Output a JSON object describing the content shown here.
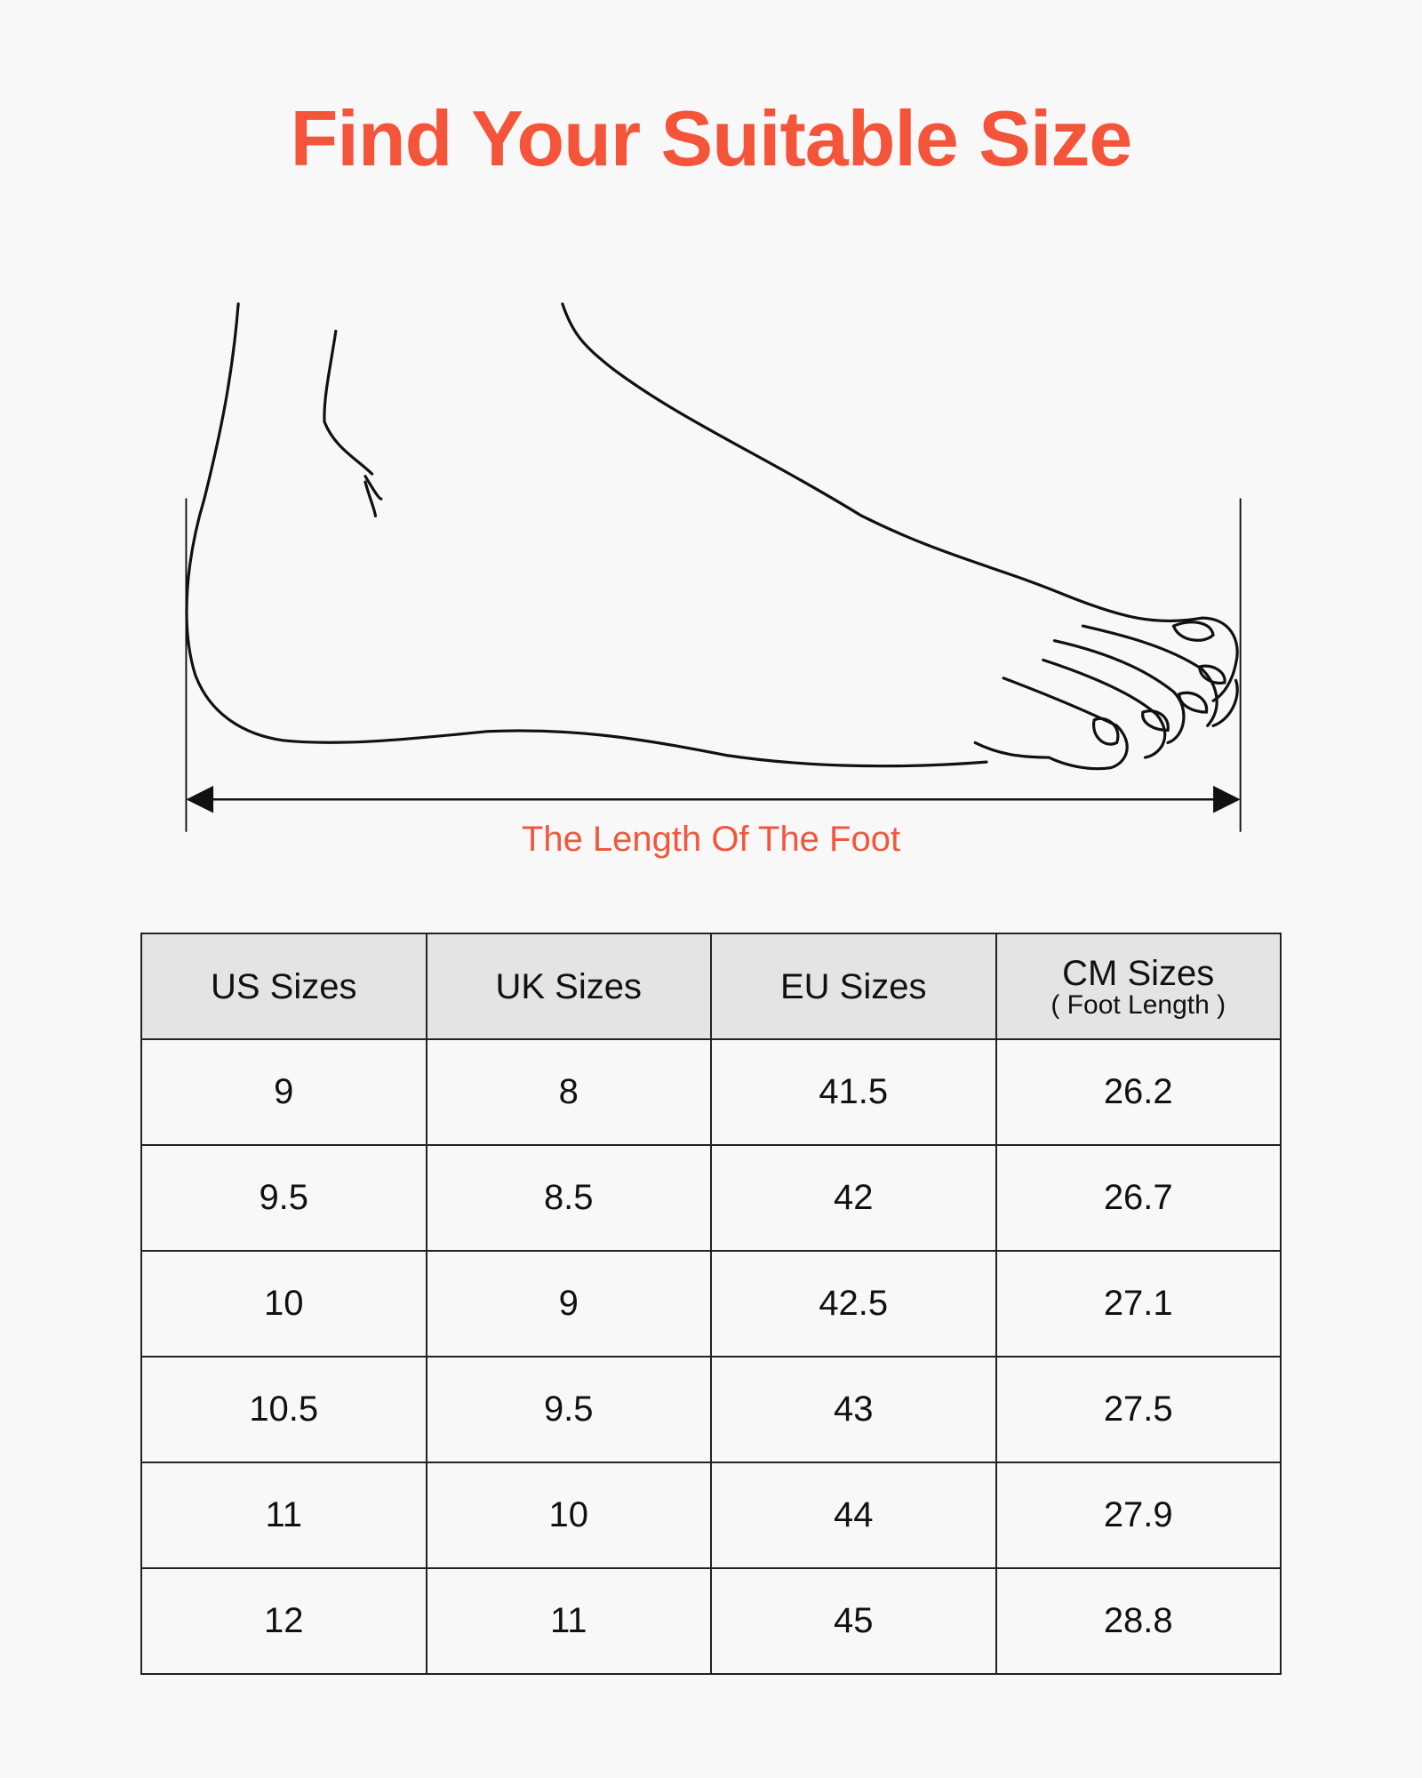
{
  "title": "Find Your Suitable Size",
  "illustration": {
    "label": "The Length Of The Foot"
  },
  "colors": {
    "accent": "#f4553a",
    "header_bg": "#e4e4e4",
    "background": "#f8f8f8"
  },
  "table": {
    "headers": [
      {
        "label": "US Sizes"
      },
      {
        "label": "UK Sizes"
      },
      {
        "label": "EU Sizes"
      },
      {
        "label": "CM Sizes",
        "sub": "( Foot Length )"
      }
    ],
    "rows": [
      [
        "9",
        "8",
        "41.5",
        "26.2"
      ],
      [
        "9.5",
        "8.5",
        "42",
        "26.7"
      ],
      [
        "10",
        "9",
        "42.5",
        "27.1"
      ],
      [
        "10.5",
        "9.5",
        "43",
        "27.5"
      ],
      [
        "11",
        "10",
        "44",
        "27.9"
      ],
      [
        "12",
        "11",
        "45",
        "28.8"
      ]
    ]
  }
}
